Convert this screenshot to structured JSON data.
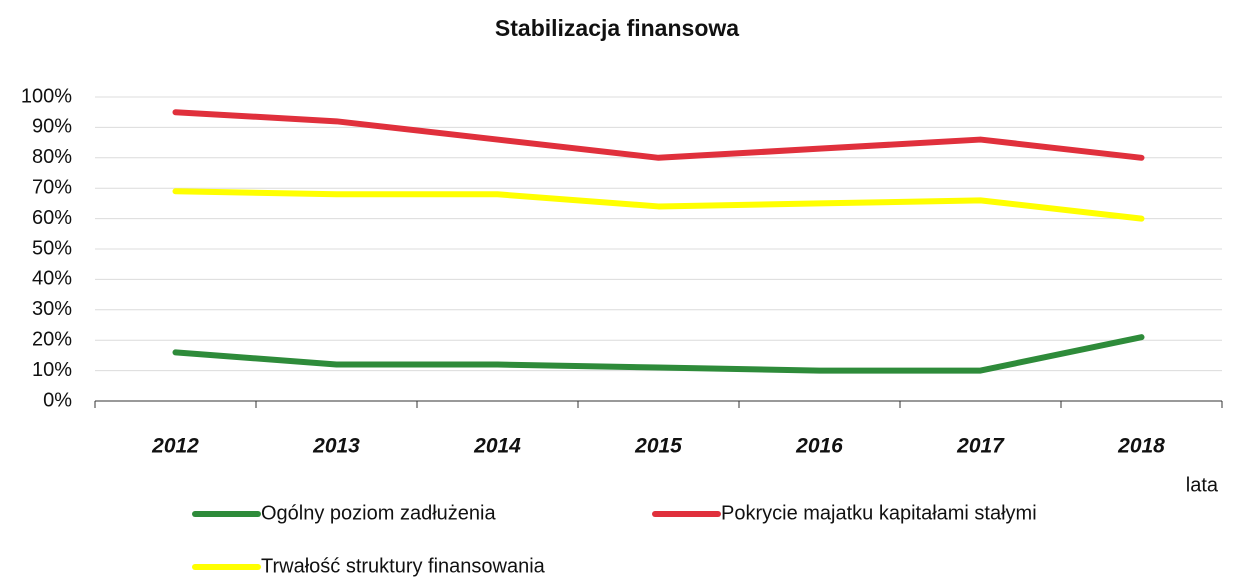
{
  "chart_data": {
    "type": "line",
    "title": "Stabilizacja finansowa",
    "x_label": "lata",
    "categories": [
      "2012",
      "2013",
      "2014",
      "2015",
      "2016",
      "2017",
      "2018"
    ],
    "series": [
      {
        "name": "Ogólny poziom zadłużenia",
        "color": "#2e8b3a",
        "values": [
          16,
          12,
          12,
          11,
          10,
          10,
          21
        ]
      },
      {
        "name": "Pokrycie majatku kapitałami stałymi",
        "color": "#e0303c",
        "values": [
          95,
          92,
          86,
          80,
          83,
          86,
          80
        ]
      },
      {
        "name": "Trwałość struktury finansowania",
        "color": "#ffff00",
        "values": [
          69,
          68,
          68,
          64,
          65,
          66,
          60
        ]
      }
    ],
    "ylim": [
      0,
      100
    ],
    "yticks": [
      {
        "value": 0,
        "label": "0%"
      },
      {
        "value": 10,
        "label": "10%"
      },
      {
        "value": 20,
        "label": "20%"
      },
      {
        "value": 30,
        "label": "30%"
      },
      {
        "value": 40,
        "label": "40%"
      },
      {
        "value": 50,
        "label": "50%"
      },
      {
        "value": 60,
        "label": "60%"
      },
      {
        "value": 70,
        "label": "70%"
      },
      {
        "value": 80,
        "label": "80%"
      },
      {
        "value": 90,
        "label": "90%"
      },
      {
        "value": 100,
        "label": "100%"
      }
    ],
    "grid": true
  }
}
